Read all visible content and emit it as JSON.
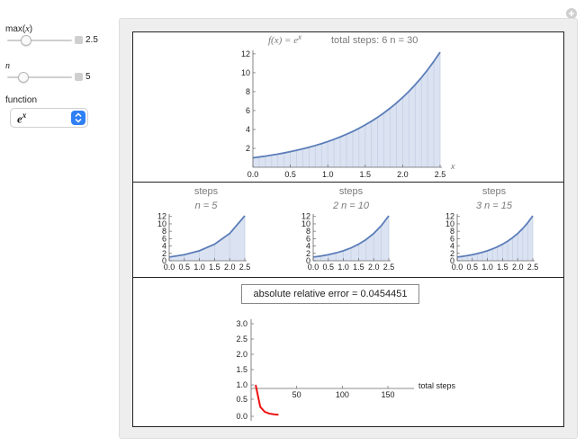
{
  "controls": {
    "max_label": "max(x)",
    "max_value": "2.5",
    "max_level": 0.25,
    "n_label": "n",
    "n_value": "5",
    "n_level": 0.2,
    "function_label": "function",
    "function_selected": "e^x"
  },
  "main_plot": {
    "title_func": "f(x) = e",
    "title_exp": "x",
    "title_steps": "total steps: 6 n = 30",
    "x_label": "x"
  },
  "panels": [
    {
      "line1": "steps",
      "line2": "n = 5"
    },
    {
      "line1": "steps",
      "line2": "2 n = 10"
    },
    {
      "line1": "steps",
      "line2": "3 n = 15"
    }
  ],
  "error": {
    "text": "absolute relative error = 0.0454451",
    "x_label": "total steps"
  },
  "chart_data": [
    {
      "type": "area",
      "function": "exp(x)",
      "n_steps": 30,
      "xlim": [
        0,
        2.5
      ],
      "ylim": [
        0,
        12.18
      ],
      "x_ticks": [
        0.0,
        0.5,
        1.0,
        1.5,
        2.0,
        2.5
      ],
      "x_tick_labels": [
        "0.0",
        "0.5",
        "1.0",
        "1.5",
        "2.0",
        "2.5"
      ],
      "y_ticks": [
        2,
        4,
        6,
        8,
        10,
        12
      ],
      "y_tick_labels": [
        "2",
        "4",
        "6",
        "8",
        "10",
        "12"
      ]
    },
    {
      "type": "area",
      "function": "exp(x)",
      "n_steps": 5,
      "xlim": [
        0,
        2.5
      ],
      "ylim": [
        0,
        12.18
      ],
      "x_ticks": [
        0.0,
        0.5,
        1.0,
        1.5,
        2.0,
        2.5
      ],
      "x_tick_labels": [
        "0.0",
        "0.5",
        "1.0",
        "1.5",
        "2.0",
        "2.5"
      ],
      "y_ticks": [
        0,
        2,
        4,
        6,
        8,
        10,
        12
      ],
      "y_tick_labels": [
        "0",
        "2",
        "4",
        "6",
        "8",
        "10",
        "12"
      ]
    },
    {
      "type": "area",
      "function": "exp(x)",
      "n_steps": 10,
      "xlim": [
        0,
        2.5
      ],
      "ylim": [
        0,
        12.18
      ],
      "x_ticks": [
        0.0,
        0.5,
        1.0,
        1.5,
        2.0,
        2.5
      ],
      "x_tick_labels": [
        "0.0",
        "0.5",
        "1.0",
        "1.5",
        "2.0",
        "2.5"
      ],
      "y_ticks": [
        0,
        2,
        4,
        6,
        8,
        10,
        12
      ],
      "y_tick_labels": [
        "0",
        "2",
        "4",
        "6",
        "8",
        "10",
        "12"
      ]
    },
    {
      "type": "area",
      "function": "exp(x)",
      "n_steps": 15,
      "xlim": [
        0,
        2.5
      ],
      "ylim": [
        0,
        12.18
      ],
      "x_ticks": [
        0.0,
        0.5,
        1.0,
        1.5,
        2.0,
        2.5
      ],
      "x_tick_labels": [
        "0.0",
        "0.5",
        "1.0",
        "1.5",
        "2.0",
        "2.5"
      ],
      "y_ticks": [
        0,
        2,
        4,
        6,
        8,
        10,
        12
      ],
      "y_tick_labels": [
        "0",
        "2",
        "4",
        "6",
        "8",
        "10",
        "12"
      ]
    },
    {
      "type": "line",
      "x": [
        5,
        10,
        15,
        20,
        25,
        30
      ],
      "y": [
        1.0,
        0.28,
        0.13,
        0.08,
        0.06,
        0.045
      ],
      "xlim": [
        0,
        175
      ],
      "ylim": [
        0,
        3.2
      ],
      "x_ticks": [
        50,
        100,
        150
      ],
      "x_tick_labels": [
        "50",
        "100",
        "150"
      ],
      "y_ticks": [
        0.0,
        0.5,
        1.0,
        1.5,
        2.0,
        2.5,
        3.0
      ],
      "y_tick_labels": [
        "0.0",
        "0.5",
        "1.0",
        "1.5",
        "2.0",
        "2.5",
        "3.0"
      ],
      "colors": {
        "line": "#ee1111"
      }
    }
  ],
  "colors": {
    "curve": "#5b7db8",
    "fill": "#dbe3f2",
    "step_line": "#c5cfe3",
    "error_line": "#ee1111",
    "select_accent": "#2f80f5"
  }
}
